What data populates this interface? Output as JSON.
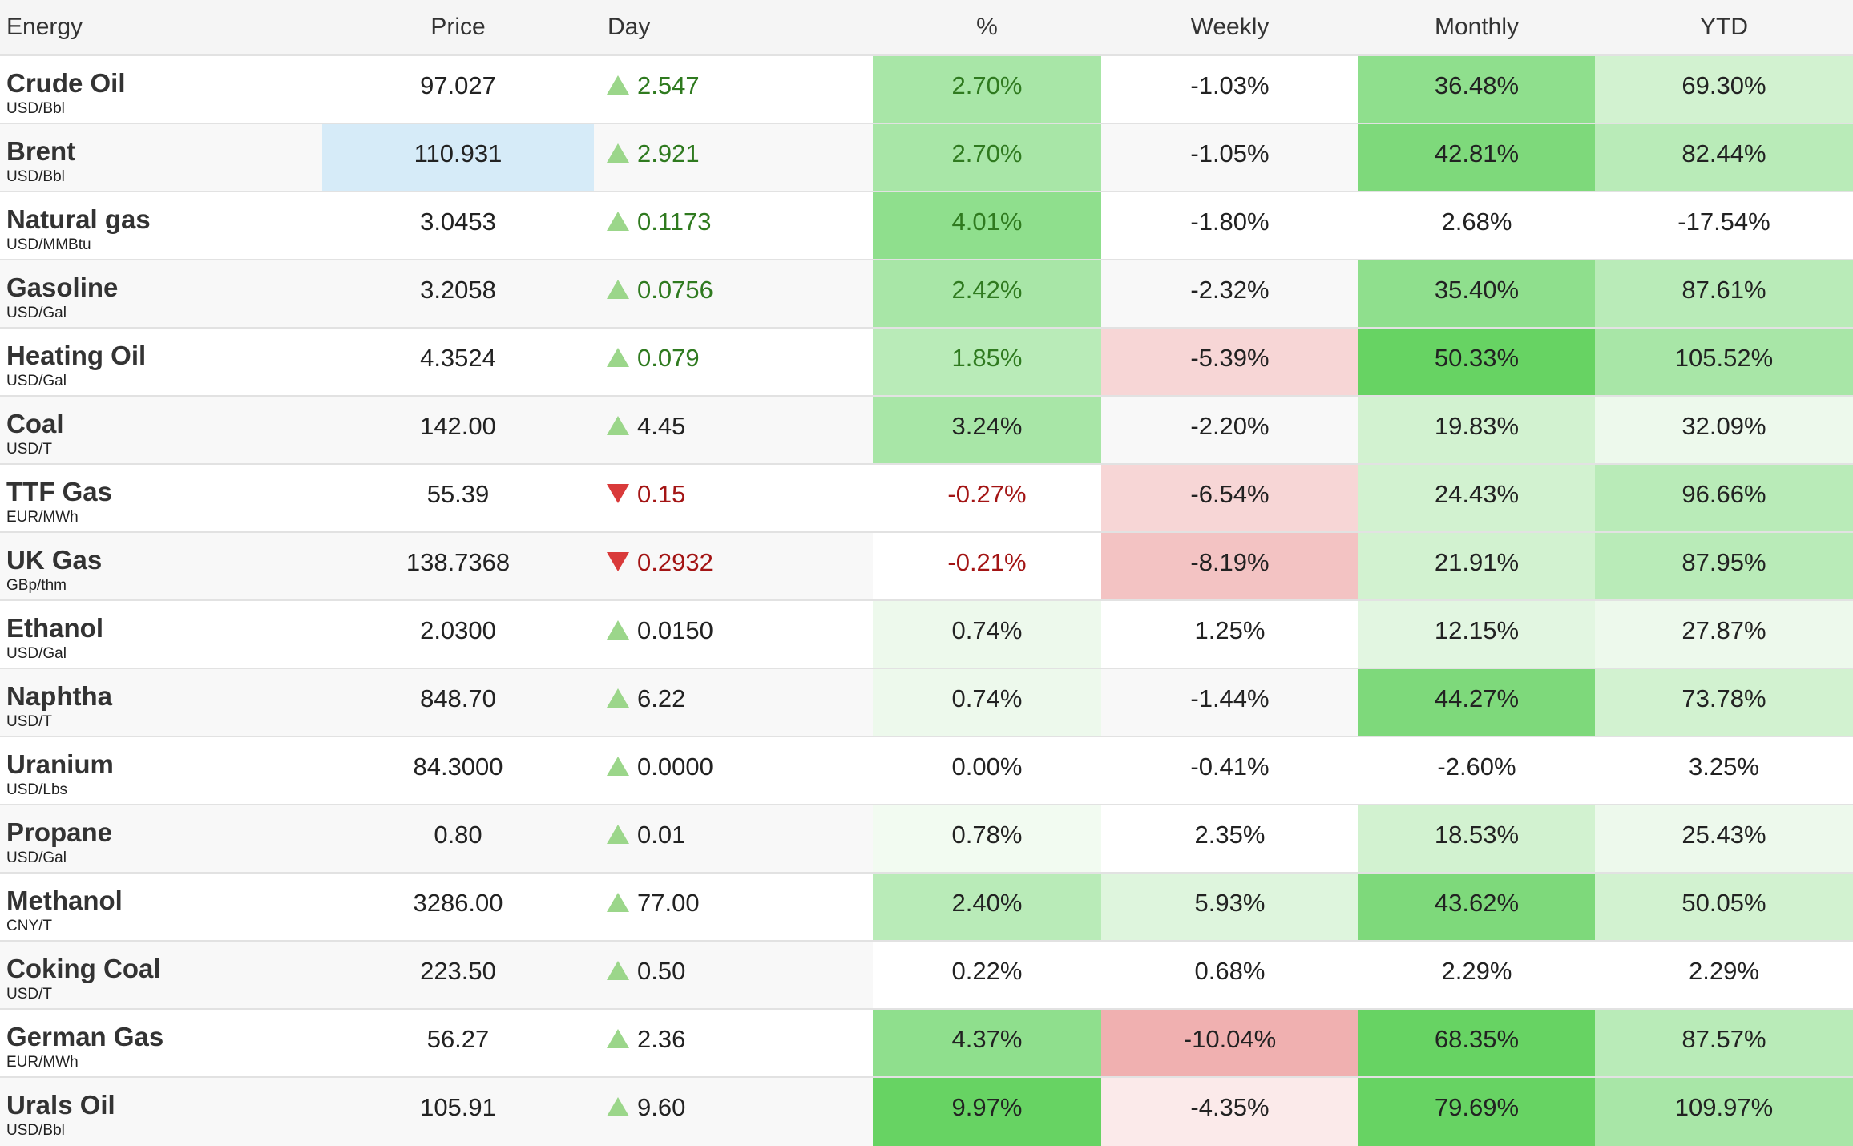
{
  "header": {
    "name": "Energy",
    "price": "Price",
    "day": "Day",
    "pct": "%",
    "weekly": "Weekly",
    "monthly": "Monthly",
    "ytd": "YTD"
  },
  "colors": {
    "green_1": "#edf9ec",
    "green_2": "#d2f2d0",
    "green_3": "#b9ebb8",
    "green_4": "#a8e6a7",
    "green_5": "#8fdf8d",
    "green_6": "#7ed97b",
    "green_7": "#67d363",
    "red_1": "#fbeaea",
    "red_2": "#f7d6d6",
    "red_3": "#f3c3c3",
    "red_4": "#f0b0b0",
    "selected_blue": "#d6ebf8",
    "up_arrow": "#9bd68a",
    "down_arrow": "#d93a3a",
    "pos_text": "#2f7a1f",
    "neg_text": "#a31414"
  },
  "rows": [
    {
      "name": "Crude Oil",
      "unit": "USD/Bbl",
      "price": "97.027",
      "day": "2.547",
      "dir": "up",
      "day_color": "pos",
      "pct": "2.70%",
      "pct_color": "pos",
      "pct_bg": "#a8e6a7",
      "weekly": "-1.03%",
      "weekly_bg": "",
      "monthly": "36.48%",
      "monthly_bg": "#8fdf8d",
      "ytd": "69.30%",
      "ytd_bg": "#d2f2d0"
    },
    {
      "name": "Brent",
      "unit": "USD/Bbl",
      "price": "110.931",
      "price_selected": true,
      "day": "2.921",
      "dir": "up",
      "day_color": "pos",
      "pct": "2.70%",
      "pct_color": "pos",
      "pct_bg": "#a8e6a7",
      "weekly": "-1.05%",
      "weekly_bg": "",
      "monthly": "42.81%",
      "monthly_bg": "#7ed97b",
      "ytd": "82.44%",
      "ytd_bg": "#b9ebb8"
    },
    {
      "name": "Natural gas",
      "unit": "USD/MMBtu",
      "price": "3.0453",
      "day": "0.1173",
      "dir": "up",
      "day_color": "pos",
      "pct": "4.01%",
      "pct_color": "pos",
      "pct_bg": "#8fdf8d",
      "weekly": "-1.80%",
      "weekly_bg": "",
      "monthly": "2.68%",
      "monthly_bg": "",
      "ytd": "-17.54%",
      "ytd_bg": ""
    },
    {
      "name": "Gasoline",
      "unit": "USD/Gal",
      "price": "3.2058",
      "day": "0.0756",
      "dir": "up",
      "day_color": "pos",
      "pct": "2.42%",
      "pct_color": "pos",
      "pct_bg": "#a8e6a7",
      "weekly": "-2.32%",
      "weekly_bg": "",
      "monthly": "35.40%",
      "monthly_bg": "#8fdf8d",
      "ytd": "87.61%",
      "ytd_bg": "#b9ebb8"
    },
    {
      "name": "Heating Oil",
      "unit": "USD/Gal",
      "price": "4.3524",
      "day": "0.079",
      "dir": "up",
      "day_color": "pos",
      "pct": "1.85%",
      "pct_color": "pos",
      "pct_bg": "#b9ebb8",
      "weekly": "-5.39%",
      "weekly_bg": "#f7d6d6",
      "monthly": "50.33%",
      "monthly_bg": "#67d363",
      "ytd": "105.52%",
      "ytd_bg": "#a8e6a7"
    },
    {
      "name": "Coal",
      "unit": "USD/T",
      "price": "142.00",
      "day": "4.45",
      "dir": "up",
      "day_color": "neutral",
      "pct": "3.24%",
      "pct_color": "neutral",
      "pct_bg": "#a8e6a7",
      "weekly": "-2.20%",
      "weekly_bg": "",
      "monthly": "19.83%",
      "monthly_bg": "#d2f2d0",
      "ytd": "32.09%",
      "ytd_bg": "#edf9ec"
    },
    {
      "name": "TTF Gas",
      "unit": "EUR/MWh",
      "price": "55.39",
      "day": "0.15",
      "dir": "down",
      "day_color": "neg",
      "pct": "-0.27%",
      "pct_color": "neg",
      "pct_bg": "",
      "weekly": "-6.54%",
      "weekly_bg": "#f7d6d6",
      "monthly": "24.43%",
      "monthly_bg": "#d2f2d0",
      "ytd": "96.66%",
      "ytd_bg": "#b9ebb8"
    },
    {
      "name": "UK Gas",
      "unit": "GBp/thm",
      "price": "138.7368",
      "day": "0.2932",
      "dir": "down",
      "day_color": "neg",
      "pct": "-0.21%",
      "pct_color": "neg",
      "pct_bg": "#ffffff",
      "weekly": "-8.19%",
      "weekly_bg": "#f3c3c3",
      "monthly": "21.91%",
      "monthly_bg": "#d2f2d0",
      "ytd": "87.95%",
      "ytd_bg": "#b9ebb8"
    },
    {
      "name": "Ethanol",
      "unit": "USD/Gal",
      "price": "2.0300",
      "day": "0.0150",
      "dir": "up",
      "day_color": "neutral",
      "pct": "0.74%",
      "pct_color": "neutral",
      "pct_bg": "#edf9ec",
      "weekly": "1.25%",
      "weekly_bg": "#ffffff",
      "monthly": "12.15%",
      "monthly_bg": "#e2f6e1",
      "ytd": "27.87%",
      "ytd_bg": "#edf9ec"
    },
    {
      "name": "Naphtha",
      "unit": "USD/T",
      "price": "848.70",
      "day": "6.22",
      "dir": "up",
      "day_color": "neutral",
      "pct": "0.74%",
      "pct_color": "neutral",
      "pct_bg": "#edf9ec",
      "weekly": "-1.44%",
      "weekly_bg": "",
      "monthly": "44.27%",
      "monthly_bg": "#7ed97b",
      "ytd": "73.78%",
      "ytd_bg": "#d2f2d0"
    },
    {
      "name": "Uranium",
      "unit": "USD/Lbs",
      "price": "84.3000",
      "day": "0.0000",
      "dir": "up",
      "day_color": "neutral",
      "pct": "0.00%",
      "pct_color": "neutral",
      "pct_bg": "",
      "weekly": "-0.41%",
      "weekly_bg": "",
      "monthly": "-2.60%",
      "monthly_bg": "",
      "ytd": "3.25%",
      "ytd_bg": ""
    },
    {
      "name": "Propane",
      "unit": "USD/Gal",
      "price": "0.80",
      "day": "0.01",
      "dir": "up",
      "day_color": "neutral",
      "pct": "0.78%",
      "pct_color": "neutral",
      "pct_bg": "#f2fbf1",
      "weekly": "2.35%",
      "weekly_bg": "#ffffff",
      "monthly": "18.53%",
      "monthly_bg": "#d2f2d0",
      "ytd": "25.43%",
      "ytd_bg": "#edf9ec"
    },
    {
      "name": "Methanol",
      "unit": "CNY/T",
      "price": "3286.00",
      "day": "77.00",
      "dir": "up",
      "day_color": "neutral",
      "pct": "2.40%",
      "pct_color": "neutral",
      "pct_bg": "#b9ebb8",
      "weekly": "5.93%",
      "weekly_bg": "#def5dd",
      "monthly": "43.62%",
      "monthly_bg": "#7ed97b",
      "ytd": "50.05%",
      "ytd_bg": "#d2f2d0"
    },
    {
      "name": "Coking Coal",
      "unit": "USD/T",
      "price": "223.50",
      "day": "0.50",
      "dir": "up",
      "day_color": "neutral",
      "pct": "0.22%",
      "pct_color": "neutral",
      "pct_bg": "#ffffff",
      "weekly": "0.68%",
      "weekly_bg": "#ffffff",
      "monthly": "2.29%",
      "monthly_bg": "#ffffff",
      "ytd": "2.29%",
      "ytd_bg": "#ffffff"
    },
    {
      "name": "German Gas",
      "unit": "EUR/MWh",
      "price": "56.27",
      "day": "2.36",
      "dir": "up",
      "day_color": "neutral",
      "pct": "4.37%",
      "pct_color": "neutral",
      "pct_bg": "#8fdf8d",
      "weekly": "-10.04%",
      "weekly_bg": "#f0b0b0",
      "monthly": "68.35%",
      "monthly_bg": "#67d363",
      "ytd": "87.57%",
      "ytd_bg": "#b9ebb8"
    },
    {
      "name": "Urals Oil",
      "unit": "USD/Bbl",
      "price": "105.91",
      "day": "9.60",
      "dir": "up",
      "day_color": "neutral",
      "pct": "9.97%",
      "pct_color": "neutral",
      "pct_bg": "#67d363",
      "weekly": "-4.35%",
      "weekly_bg": "#fbeaea",
      "monthly": "79.69%",
      "monthly_bg": "#67d363",
      "ytd": "109.97%",
      "ytd_bg": "#a8e6a7"
    }
  ]
}
